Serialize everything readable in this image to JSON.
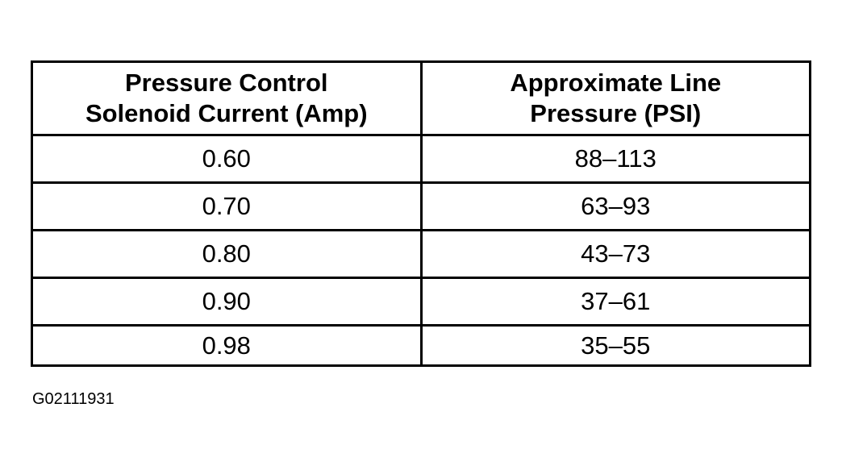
{
  "table": {
    "header": [
      [
        "Pressure Control",
        "Solenoid Current (Amp)"
      ],
      [
        "Approximate Line",
        "Pressure (PSI)"
      ]
    ],
    "rows": [
      [
        "0.60",
        "88–113"
      ],
      [
        "0.70",
        "63–93"
      ],
      [
        "0.80",
        "43–73"
      ],
      [
        "0.90",
        "37–61"
      ],
      [
        "0.98",
        "35–55"
      ]
    ]
  },
  "caption": "G02111931"
}
